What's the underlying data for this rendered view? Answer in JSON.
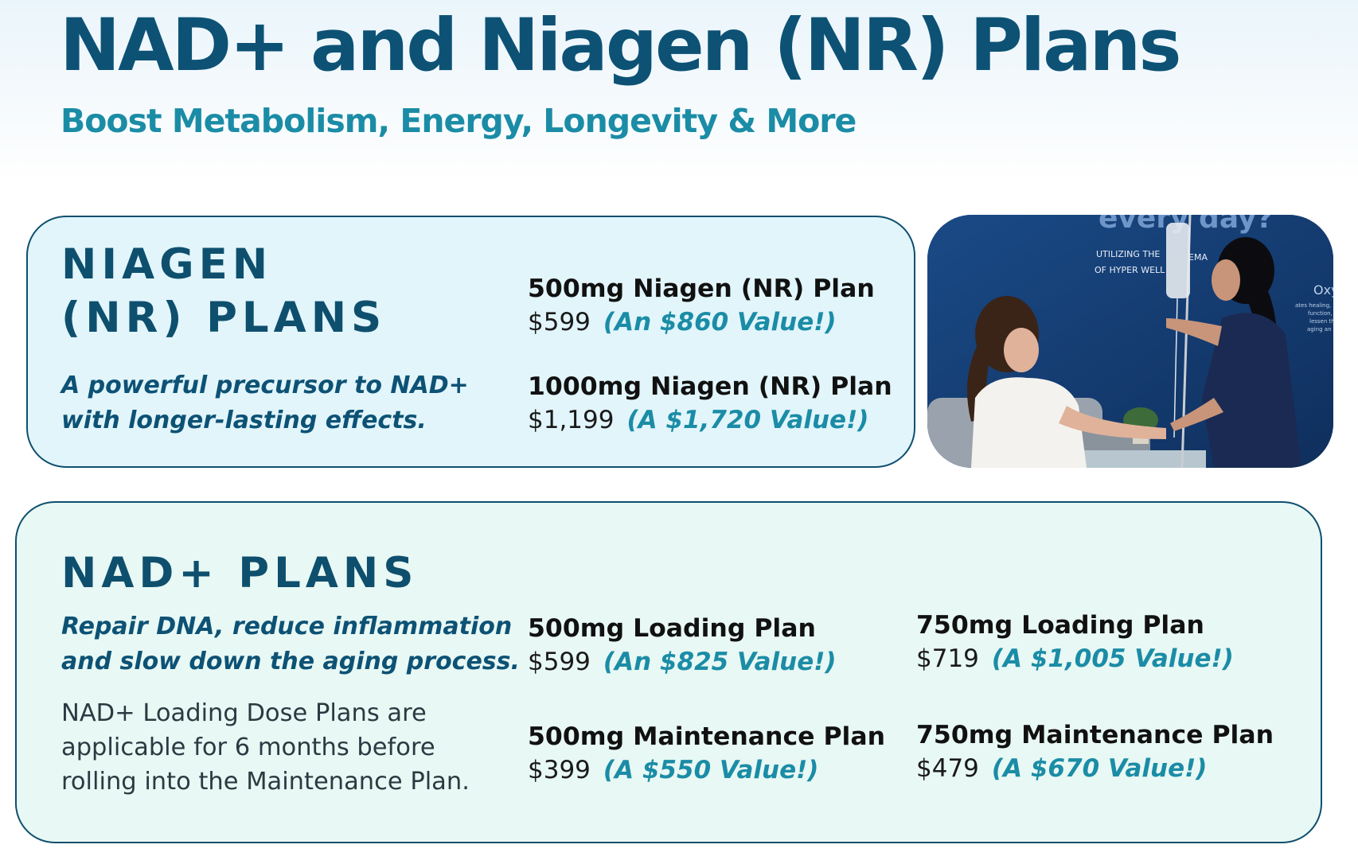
{
  "header": {
    "title": "NAD+ and Niagen (NR) Plans",
    "subtitle": "Boost Metabolism, Energy, Longevity & More"
  },
  "niagen": {
    "heading_line1": "NIAGEN",
    "heading_line2": "(NR) PLANS",
    "tagline_line1": "A powerful precursor to NAD+",
    "tagline_line2": "with longer-lasting effects.",
    "plans": [
      {
        "name": "500mg Niagen (NR) Plan",
        "price": "$599",
        "value": "(An $860 Value!)"
      },
      {
        "name": "1000mg Niagen (NR) Plan",
        "price": "$1,199",
        "value": "(A $1,720 Value!)"
      }
    ]
  },
  "photo": {
    "wall_text_top": "every day?",
    "wall_text_line1": "UTILIZING THE",
    "wall_text_line2": "OF HYPER WELL",
    "wall_text_fragment": "EMA",
    "wall_text_side": "Oxy",
    "wall_text_small1": "ates healing,",
    "wall_text_small2": "function,",
    "wall_text_small3": "lessen th",
    "wall_text_small4": "aging an"
  },
  "nad": {
    "heading": "NAD+ PLANS",
    "tagline_line1": "Repair DNA, reduce inflammation",
    "tagline_line2": "and slow down the aging process.",
    "note_line1": "NAD+ Loading Dose Plans are",
    "note_line2": "applicable for 6 months before",
    "note_line3": "rolling into the Maintenance Plan.",
    "plans": [
      {
        "name": "500mg Loading Plan",
        "price": "$599",
        "value": "(An $825 Value!)"
      },
      {
        "name": "750mg Loading Plan",
        "price": "$719",
        "value": "(A $1,005 Value!)"
      },
      {
        "name": "500mg Maintenance Plan",
        "price": "$399",
        "value": "(A $550 Value!)"
      },
      {
        "name": "750mg Maintenance Plan",
        "price": "$479",
        "value": "(A $670 Value!)"
      }
    ]
  },
  "colors": {
    "navy": "#0d5275",
    "teal_accent": "#1b8ca6",
    "niagen_card_bg": "#e1f5fb",
    "nad_card_bg": "#e8f8f4",
    "card_border": "#0e4f6e"
  }
}
